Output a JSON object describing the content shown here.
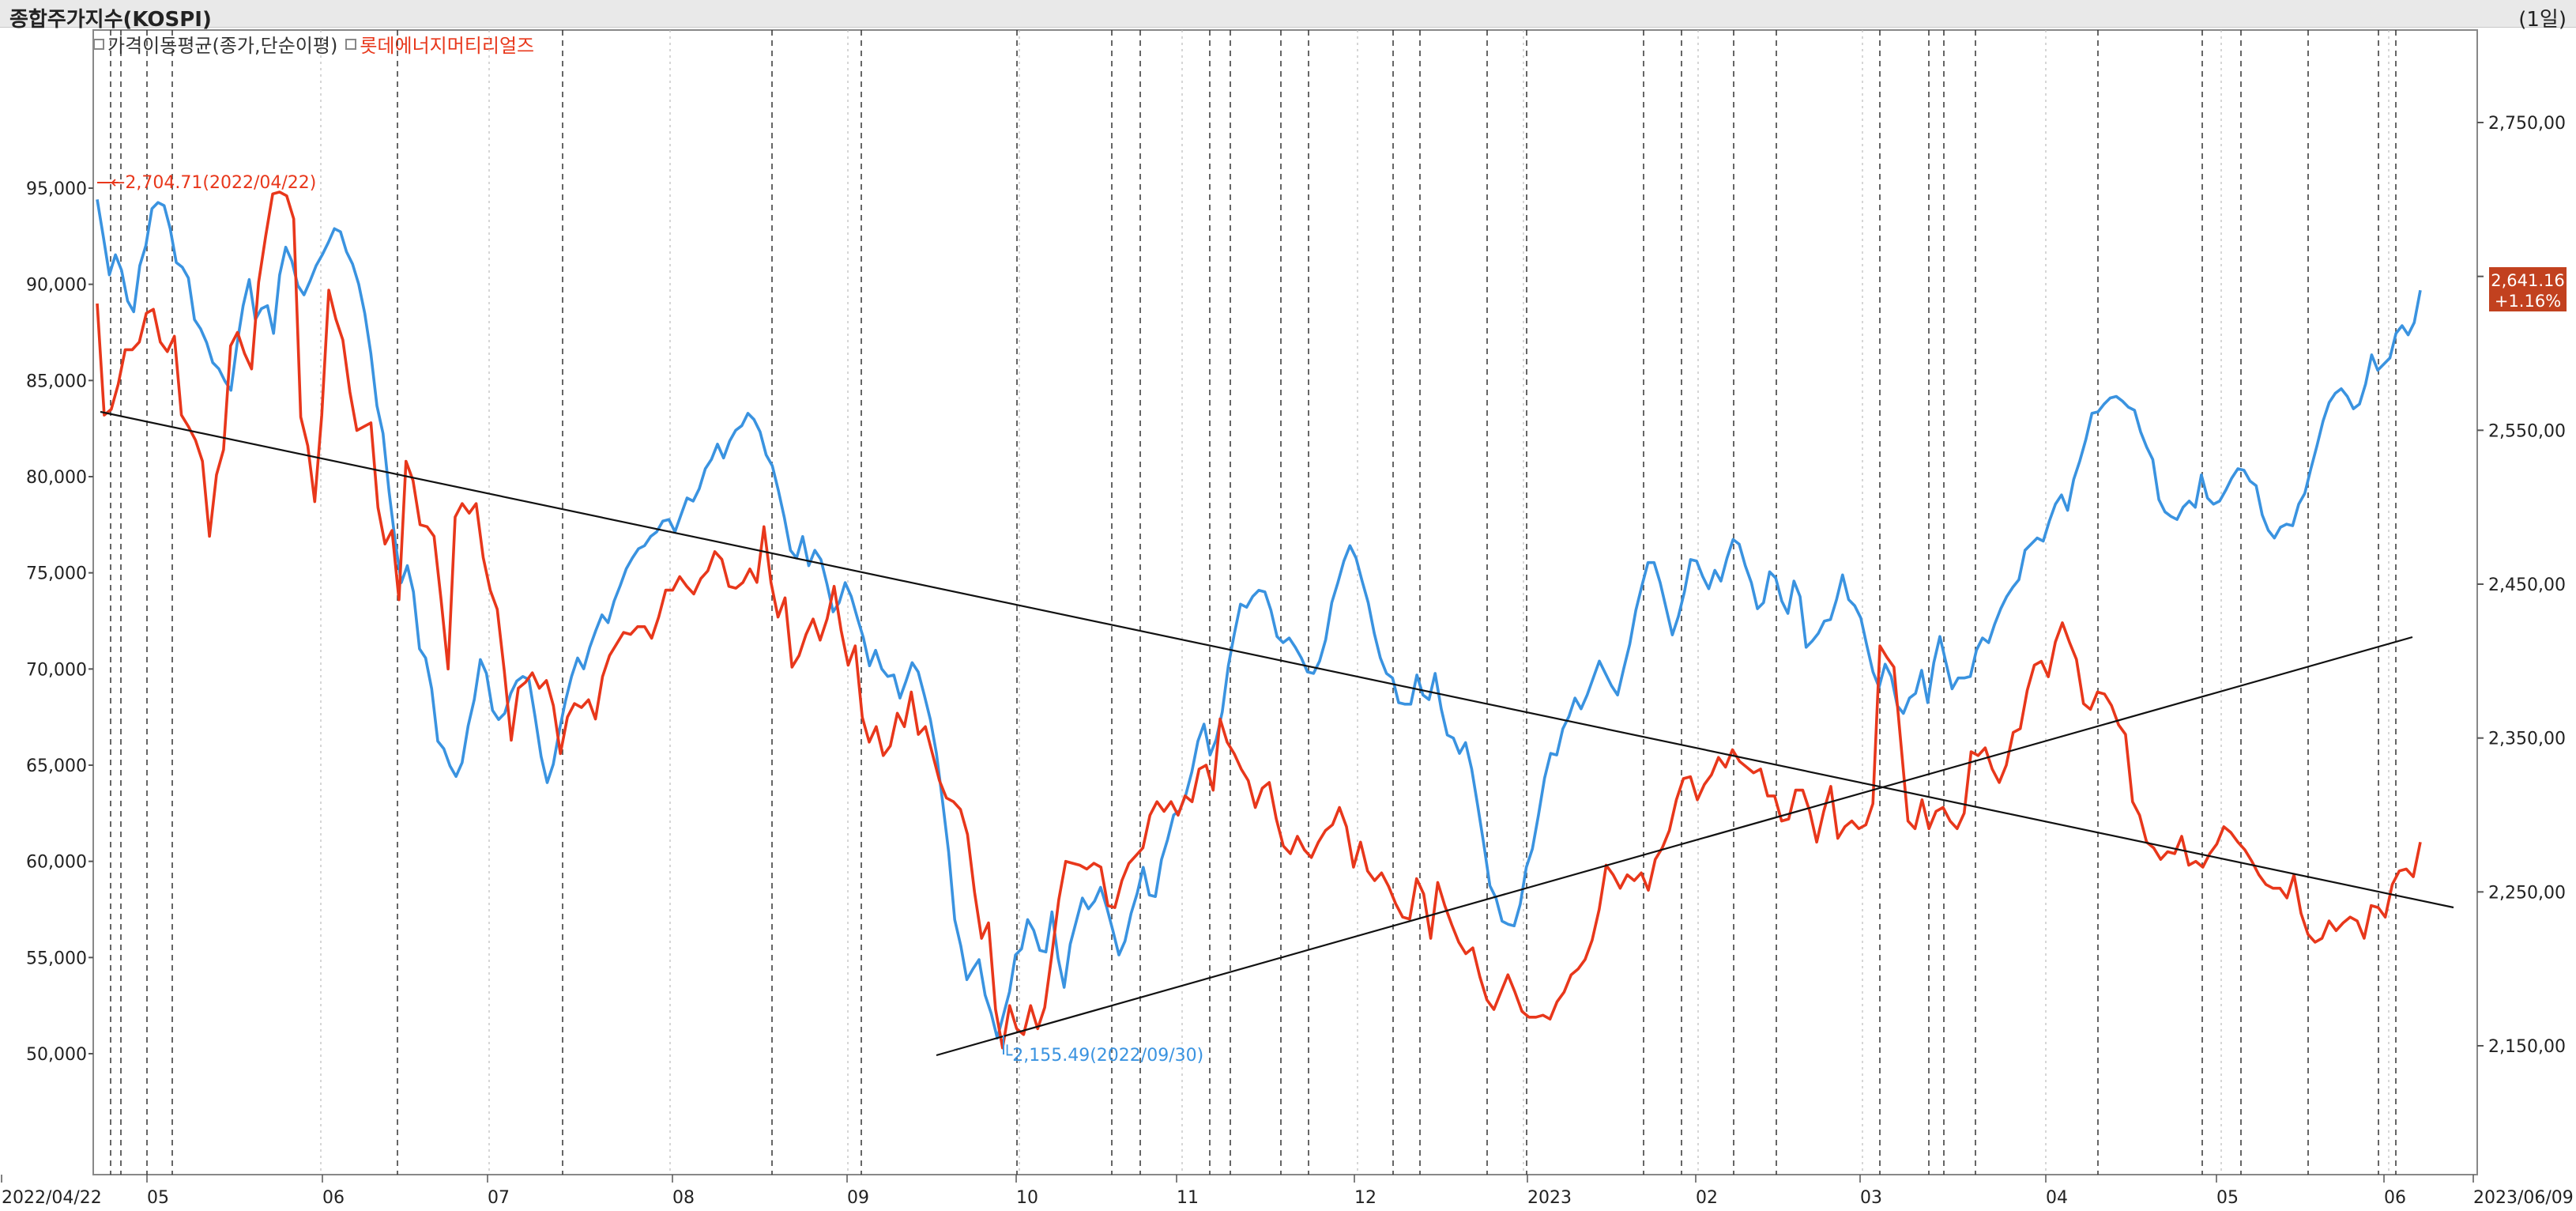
{
  "header": {
    "title": "종합주가지수(KOSPI)",
    "interval": "(1일)"
  },
  "legend": [
    {
      "label": "가격이동평균(종가,단순이평)",
      "color": "#333333"
    },
    {
      "label": "롯데에너지머티리얼즈",
      "color": "#e8371b"
    }
  ],
  "colors": {
    "kospi": "#3a93e0",
    "stock": "#e8371b",
    "trend": "#111111",
    "grid": "#bbbbbb"
  },
  "chart_data": {
    "type": "line",
    "left_axis": {
      "ticks": [
        "95,000",
        "90,000",
        "85,000",
        "80,000",
        "75,000",
        "70,000",
        "65,000",
        "60,000",
        "55,000",
        "50,000"
      ],
      "range": [
        50000,
        95000
      ]
    },
    "right_axis": {
      "ticks": [
        "2,750,00",
        "2,650,00",
        "2,550,00",
        "2,450,00",
        "2,350,00",
        "2,250,00",
        "2,150,00"
      ],
      "range": [
        2150,
        2750
      ]
    },
    "x_labels": [
      "2022/04/22",
      "05",
      "06",
      "07",
      "08",
      "09",
      "10",
      "11",
      "12",
      "2023",
      "02",
      "03",
      "04",
      "05",
      "06",
      "2023/06/09"
    ],
    "annotations": {
      "high": "2,704.71(2022/04/22)",
      "low": "2,155.49(2022/09/30)",
      "last_price": "2,641.16",
      "last_change": "+1.16%"
    },
    "series": [
      {
        "name": "종합주가지수(KOSPI)",
        "axis": "right",
        "values": [
          2700,
          2676,
          2651,
          2664,
          2654,
          2634,
          2627,
          2657,
          2670,
          2694,
          2698,
          2696,
          2681,
          2659,
          2656,
          2649,
          2622,
          2616,
          2607,
          2594,
          2590,
          2582,
          2576,
          2606,
          2631,
          2648,
          2622,
          2629,
          2631,
          2613,
          2651,
          2669,
          2660,
          2644,
          2638,
          2647,
          2657,
          2664,
          2672,
          2681,
          2679,
          2666,
          2658,
          2645,
          2626,
          2600,
          2566,
          2548,
          2510,
          2478,
          2451,
          2462,
          2445,
          2408,
          2402,
          2382,
          2348,
          2343,
          2332,
          2325,
          2334,
          2358,
          2375,
          2401,
          2392,
          2368,
          2362,
          2366,
          2379,
          2387,
          2390,
          2388,
          2364,
          2338,
          2321,
          2333,
          2355,
          2374,
          2390,
          2402,
          2395,
          2409,
          2420,
          2430,
          2425,
          2439,
          2449,
          2460,
          2467,
          2473,
          2475,
          2481,
          2484,
          2491,
          2492,
          2484,
          2495,
          2506,
          2504,
          2512,
          2525,
          2531,
          2541,
          2532,
          2543,
          2550,
          2553,
          2561,
          2557,
          2549,
          2534,
          2527,
          2511,
          2493,
          2472,
          2467,
          2481,
          2462,
          2472,
          2466,
          2450,
          2432,
          2438,
          2451,
          2442,
          2428,
          2415,
          2397,
          2407,
          2395,
          2390,
          2391,
          2376,
          2387,
          2399,
          2393,
          2378,
          2362,
          2340,
          2309,
          2276,
          2232,
          2215,
          2193,
          2200,
          2206,
          2183,
          2171,
          2155,
          2170,
          2185,
          2209,
          2213,
          2232,
          2225,
          2212,
          2211,
          2237,
          2207,
          2188,
          2216,
          2231,
          2246,
          2239,
          2244,
          2253,
          2240,
          2225,
          2209,
          2218,
          2236,
          2249,
          2266,
          2248,
          2247,
          2271,
          2284,
          2300,
          2303,
          2313,
          2328,
          2348,
          2359,
          2339,
          2349,
          2367,
          2397,
          2418,
          2437,
          2435,
          2442,
          2446,
          2445,
          2433,
          2416,
          2412,
          2415,
          2409,
          2402,
          2393,
          2392,
          2400,
          2414,
          2438,
          2451,
          2465,
          2475,
          2467,
          2452,
          2438,
          2418,
          2402,
          2392,
          2389,
          2373,
          2372,
          2372,
          2391,
          2378,
          2375,
          2392,
          2369,
          2352,
          2350,
          2340,
          2347,
          2330,
          2306,
          2281,
          2254,
          2246,
          2231,
          2229,
          2228,
          2242,
          2266,
          2278,
          2300,
          2324,
          2340,
          2339,
          2356,
          2364,
          2376,
          2369,
          2378,
          2389,
          2400,
          2392,
          2384,
          2378,
          2395,
          2411,
          2433,
          2449,
          2464,
          2464,
          2451,
          2434,
          2417,
          2429,
          2445,
          2466,
          2465,
          2455,
          2447,
          2459,
          2452,
          2467,
          2479,
          2476,
          2462,
          2451,
          2434,
          2438,
          2458,
          2454,
          2439,
          2431,
          2452,
          2442,
          2409,
          2413,
          2418,
          2426,
          2427,
          2440,
          2456,
          2440,
          2436,
          2428,
          2410,
          2393,
          2383,
          2398,
          2390,
          2371,
          2366,
          2376,
          2379,
          2394,
          2373,
          2399,
          2416,
          2399,
          2382,
          2389,
          2389,
          2390,
          2407,
          2415,
          2412,
          2424,
          2434,
          2442,
          2448,
          2453,
          2472,
          2476,
          2480,
          2478,
          2491,
          2502,
          2508,
          2498,
          2518,
          2530,
          2544,
          2561,
          2562,
          2567,
          2571,
          2572,
          2569,
          2565,
          2563,
          2549,
          2539,
          2531,
          2505,
          2497,
          2494,
          2492,
          2500,
          2504,
          2500,
          2521,
          2506,
          2502,
          2504,
          2511,
          2519,
          2525,
          2524,
          2517,
          2514,
          2495,
          2485,
          2480,
          2487,
          2489,
          2488,
          2502,
          2509,
          2525,
          2540,
          2556,
          2568,
          2574,
          2577,
          2572,
          2564,
          2567,
          2580,
          2599,
          2589,
          2593,
          2597,
          2613,
          2618,
          2612,
          2620,
          2641
        ]
      },
      {
        "name": "롯데에너지머티리얼즈",
        "axis": "left",
        "values": [
          89000,
          83200,
          83500,
          84800,
          86600,
          86600,
          87000,
          88500,
          88700,
          87000,
          86500,
          87300,
          83200,
          82600,
          81900,
          80800,
          76900,
          80100,
          81400,
          86800,
          87500,
          86400,
          85600,
          90100,
          92500,
          94700,
          94800,
          94600,
          93400,
          83100,
          81600,
          78700,
          83200,
          89700,
          88200,
          87100,
          84400,
          82400,
          82600,
          82800,
          78400,
          76500,
          77200,
          73600,
          80800,
          79800,
          77500,
          77400,
          76900,
          73600,
          70000,
          77900,
          78600,
          78100,
          78600,
          75800,
          74100,
          73100,
          69900,
          66300,
          69000,
          69300,
          69800,
          69000,
          69400,
          68100,
          65600,
          67500,
          68200,
          68000,
          68400,
          67400,
          69600,
          70700,
          71300,
          71900,
          71800,
          72200,
          72200,
          71600,
          72700,
          74100,
          74100,
          74800,
          74300,
          73900,
          74700,
          75100,
          76100,
          75700,
          74300,
          74200,
          74500,
          75200,
          74500,
          77400,
          74500,
          72700,
          73700,
          70100,
          70700,
          71800,
          72600,
          71500,
          72600,
          74300,
          72000,
          70200,
          71200,
          67500,
          66200,
          67000,
          65500,
          66000,
          67700,
          67000,
          68800,
          66600,
          67000,
          65600,
          64200,
          63300,
          63100,
          62700,
          61400,
          58400,
          56000,
          56800,
          52300,
          50300,
          52500,
          51300,
          51000,
          52500,
          51300,
          52400,
          55100,
          58000,
          60000,
          59900,
          59800,
          59600,
          59900,
          59700,
          57700,
          57600,
          59000,
          59900,
          60300,
          60700,
          62400,
          63100,
          62600,
          63100,
          62400,
          63400,
          63100,
          64800,
          65000,
          63700,
          67400,
          66200,
          65600,
          64800,
          64200,
          62800,
          63800,
          64100,
          62200,
          60800,
          60400,
          61300,
          60600,
          60200,
          61000,
          61600,
          61900,
          62800,
          61800,
          59700,
          61000,
          59500,
          59000,
          59400,
          58700,
          57800,
          57100,
          57000,
          59100,
          58300,
          56000,
          58900,
          57700,
          56700,
          55800,
          55200,
          55500,
          54000,
          52800,
          52300,
          53200,
          54100,
          53200,
          52200,
          51900,
          51900,
          52000,
          51800,
          52700,
          53200,
          54100,
          54400,
          54900,
          55900,
          57500,
          59800,
          59300,
          58600,
          59300,
          59000,
          59400,
          58500,
          60100,
          60700,
          61600,
          63200,
          64300,
          64400,
          63200,
          64000,
          64500,
          65400,
          64900,
          65800,
          65200,
          64900,
          64600,
          64800,
          63400,
          63400,
          62100,
          62200,
          63700,
          63700,
          62600,
          61000,
          62600,
          63900,
          61200,
          61800,
          62100,
          61700,
          61900,
          63000,
          71200,
          70600,
          70100,
          66100,
          62100,
          61700,
          63200,
          61700,
          62600,
          62800,
          62100,
          61700,
          62500,
          65700,
          65500,
          65900,
          64800,
          64100,
          65000,
          66700,
          66900,
          68900,
          70200,
          70400,
          69600,
          71400,
          72400,
          71400,
          70500,
          68200,
          67900,
          68800,
          68700,
          68100,
          67100,
          66600,
          63100,
          62400,
          61000,
          60700,
          60100,
          60500,
          60400,
          61300,
          59800,
          60000,
          59700,
          60400,
          60900,
          61800,
          61500,
          61000,
          60600,
          60000,
          59300,
          58800,
          58600,
          58600,
          58100,
          59300,
          57300,
          56200,
          55800,
          56000,
          56900,
          56400,
          56800,
          57100,
          56900,
          56000,
          57700,
          57600,
          57100,
          58800,
          59500,
          59600,
          59200,
          61000
        ]
      }
    ]
  }
}
